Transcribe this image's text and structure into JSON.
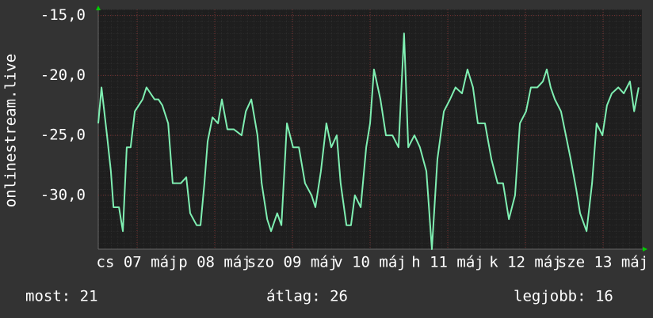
{
  "chart_data": {
    "type": "line",
    "y_label": "onlinestream.live",
    "x": [
      0,
      1,
      2.7,
      3.9,
      4.7,
      6.4,
      7.6,
      8.8,
      10,
      11.3,
      13.7,
      14.9,
      17.4,
      18.6,
      19.8,
      21.6,
      23,
      25.5,
      27.2,
      28.4,
      30.4,
      31.6,
      32.8,
      33.8,
      35.3,
      37,
      38.2,
      39.9,
      41.9,
      44.3,
      45.6,
      47.3,
      49.2,
      50.5,
      52.2,
      53.4,
      55.3,
      56.6,
      58.3,
      60.2,
      62,
      63.9,
      65.9,
      67.1,
      68.8,
      70.5,
      72,
      73.7,
      74.9,
      76.7,
      78.1,
      79.3,
      81.1,
      82.8,
      84,
      85.2,
      87.2,
      88.9,
      90.9,
      92.8,
      94.5,
      95.8,
      97.7,
      99.4,
      101.4,
      103.1,
      104.8,
      106.8,
      108.7,
      110.4,
      112.4,
      114.1,
      115.8,
      117.3,
      119.5,
      121.5,
      123.4,
      125.1,
      126.9,
      128.8,
      130.3,
      132.2,
      133.7,
      135.7,
      137.4,
      138.6,
      139.8,
      141.1,
      143,
      144.5,
      146,
      147.7,
      148.9,
      150.9,
      152.6,
      154,
      155.8,
      157.2,
      158.7,
      160.7,
      162.4,
      164.3,
      165.6,
      167
    ],
    "series": [
      {
        "color": "#7fefb2",
        "values": [
          -24,
          -21,
          -25,
          -28,
          -31,
          -31,
          -33,
          -26,
          -26,
          -23,
          -22,
          -21,
          -22,
          -22,
          -22.5,
          -24,
          -29,
          -29,
          -28.5,
          -31.5,
          -32.5,
          -32.5,
          -29,
          -25.5,
          -23.5,
          -24,
          -22,
          -24.5,
          -24.5,
          -25,
          -23,
          -22,
          -25,
          -29,
          -32,
          -33,
          -31.5,
          -32.5,
          -24,
          -26,
          -26,
          -29,
          -30,
          -31,
          -28,
          -24,
          -26,
          -25,
          -29,
          -32.5,
          -32.5,
          -30,
          -31,
          -26,
          -24,
          -19.5,
          -22,
          -25,
          -25,
          -26,
          -16.5,
          -26,
          -25,
          -26,
          -28,
          -34.5,
          -27,
          -23,
          -22,
          -21,
          -21.5,
          -19.5,
          -21,
          -24,
          -24,
          -27,
          -29,
          -29,
          -32,
          -30,
          -24,
          -23,
          -21,
          -21,
          -20.5,
          -19.5,
          -21,
          -22,
          -23,
          -25,
          -27,
          -29.5,
          -31.5,
          -33,
          -29,
          -24,
          -25,
          -22.5,
          -21.5,
          -21,
          -21.5,
          -20.5,
          -23,
          -21
        ]
      }
    ],
    "xlim": [
      0,
      168
    ],
    "xticks": [
      {
        "value": 12,
        "label": "cs 07 máj"
      },
      {
        "value": 36,
        "label": "p 08 máj"
      },
      {
        "value": 60,
        "label": "szo 09 máj"
      },
      {
        "value": 84,
        "label": "v 10 máj"
      },
      {
        "value": 108,
        "label": "h 11 máj"
      },
      {
        "value": 132,
        "label": "k 12 máj"
      },
      {
        "value": 156,
        "label": "sze 13 máj"
      }
    ],
    "ylim": [
      -34.5,
      -14.5
    ],
    "yticks": [
      {
        "value": -15,
        "label": "-15,0"
      },
      {
        "value": -20,
        "label": "-20,0"
      },
      {
        "value": -25,
        "label": "-25,0"
      },
      {
        "value": -30,
        "label": "-30,0"
      }
    ],
    "grid": true,
    "footer": {
      "current": "most: 21",
      "average": "átlag: 26",
      "best": "legjobb: 16"
    }
  }
}
